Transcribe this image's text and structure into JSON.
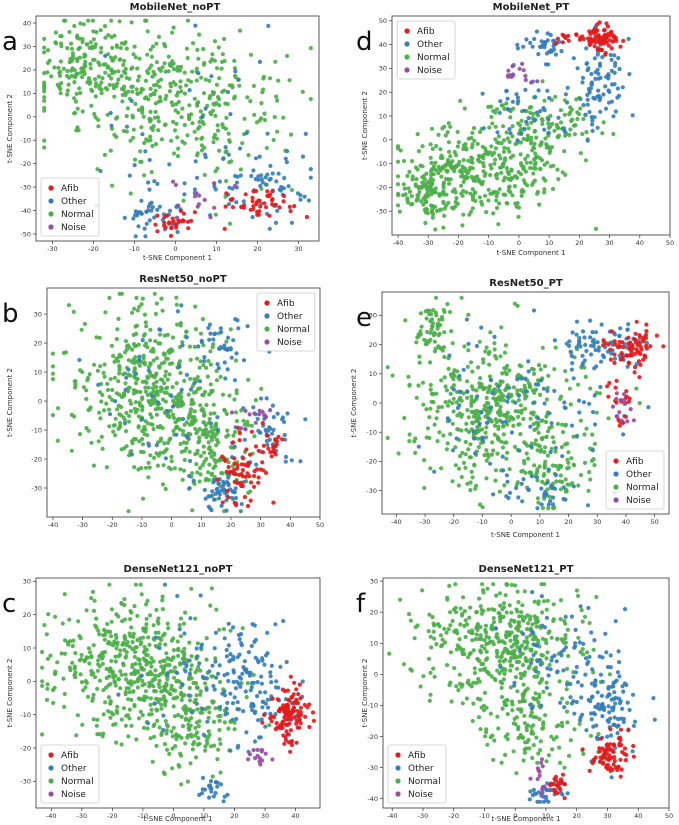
{
  "colors": {
    "Afib": "#e41a1c",
    "Other": "#377eb8",
    "Normal": "#4daf4a",
    "Noise": "#984ea3"
  },
  "legend_labels": [
    "Afib",
    "Other",
    "Normal",
    "Noise"
  ],
  "chart_data": [
    {
      "type": "scatter",
      "panel_label": "a",
      "title": "MobileNet_noPT",
      "xlabel": "t-SNE Component 1",
      "ylabel": "t-SNE Component 2",
      "xlim": [
        -34,
        35
      ],
      "ylim": [
        -53,
        43
      ],
      "xticks": [
        -30,
        -20,
        -10,
        0,
        10,
        20,
        30
      ],
      "yticks": [
        -50,
        -40,
        -30,
        -20,
        -10,
        0,
        10,
        20,
        30,
        40
      ],
      "legend_position": "bottom-left",
      "series": [
        {
          "name": "Normal",
          "count": 540,
          "clusters": [
            {
              "cx": -8,
              "cy": 12,
              "sx": 13,
              "sy": 14,
              "w": 6
            },
            {
              "cx": 10,
              "cy": 0,
              "sx": 9,
              "sy": 14,
              "w": 3
            },
            {
              "cx": -22,
              "cy": 22,
              "sx": 6,
              "sy": 9,
              "w": 2
            }
          ]
        },
        {
          "name": "Other",
          "count": 150,
          "clusters": [
            {
              "cx": 20,
              "cy": -30,
              "sx": 7,
              "sy": 7,
              "w": 3
            },
            {
              "cx": -6,
              "cy": -42,
              "sx": 4,
              "sy": 4,
              "w": 2
            },
            {
              "cx": 5,
              "cy": 0,
              "sx": 15,
              "sy": 18,
              "w": 2
            }
          ]
        },
        {
          "name": "Afib",
          "count": 75,
          "clusters": [
            {
              "cx": 20,
              "cy": -37,
              "sx": 4.5,
              "sy": 3,
              "w": 3
            },
            {
              "cx": 0,
              "cy": -45,
              "sx": 3,
              "sy": 2.5,
              "w": 2
            }
          ]
        },
        {
          "name": "Noise",
          "count": 14,
          "clusters": [
            {
              "cx": 6,
              "cy": -36,
              "sx": 4,
              "sy": 3,
              "w": 1
            }
          ]
        }
      ]
    },
    {
      "type": "scatter",
      "panel_label": "d",
      "title": "MobileNet_PT",
      "xlabel": "t-SNE Component 1",
      "ylabel": "t-SNE Component 2",
      "xlim": [
        -42,
        50
      ],
      "ylim": [
        -40,
        52
      ],
      "xticks": [
        -40,
        -30,
        -20,
        -10,
        0,
        10,
        20,
        30,
        40,
        50
      ],
      "yticks": [
        -30,
        -20,
        -10,
        0,
        10,
        20,
        30,
        40,
        50
      ],
      "legend_position": "top-left",
      "series": [
        {
          "name": "Normal",
          "count": 560,
          "clusters": [
            {
              "cx": -12,
              "cy": -12,
              "sx": 12,
              "sy": 10,
              "w": 6
            },
            {
              "cx": 10,
              "cy": 5,
              "sx": 8,
              "sy": 7,
              "w": 2
            },
            {
              "cx": -30,
              "cy": -22,
              "sx": 5,
              "sy": 6,
              "w": 2
            }
          ]
        },
        {
          "name": "Other",
          "count": 170,
          "clusters": [
            {
              "cx": 27,
              "cy": 25,
              "sx": 4,
              "sy": 9,
              "w": 3
            },
            {
              "cx": 8,
              "cy": 40,
              "sx": 4,
              "sy": 2.5,
              "w": 1
            },
            {
              "cx": 5,
              "cy": 12,
              "sx": 9,
              "sy": 8,
              "w": 2
            }
          ]
        },
        {
          "name": "Afib",
          "count": 90,
          "clusters": [
            {
              "cx": 27,
              "cy": 43,
              "sx": 3,
              "sy": 3,
              "w": 4
            },
            {
              "cx": 16,
              "cy": 42,
              "sx": 2,
              "sy": 1.5,
              "w": 1
            }
          ]
        },
        {
          "name": "Noise",
          "count": 14,
          "clusters": [
            {
              "cx": 0,
              "cy": 27,
              "sx": 2.5,
              "sy": 2.5,
              "w": 1
            }
          ]
        }
      ]
    },
    {
      "type": "scatter",
      "panel_label": "b",
      "title": "ResNet50_noPT",
      "xlabel": "",
      "ylabel": "t-SNE Component 2",
      "xlim": [
        -42,
        50
      ],
      "ylim": [
        -40,
        39
      ],
      "xticks": [
        -40,
        -30,
        -20,
        -10,
        0,
        10,
        20,
        30,
        40,
        50
      ],
      "yticks": [
        -30,
        -20,
        -10,
        0,
        10,
        20,
        30
      ],
      "legend_position": "top-right",
      "series": [
        {
          "name": "Normal",
          "count": 640,
          "clusters": [
            {
              "cx": -8,
              "cy": 3,
              "sx": 13,
              "sy": 14,
              "w": 6
            },
            {
              "cx": 12,
              "cy": -15,
              "sx": 7,
              "sy": 8,
              "w": 2
            }
          ]
        },
        {
          "name": "Other",
          "count": 190,
          "clusters": [
            {
              "cx": 18,
              "cy": -32,
              "sx": 4,
              "sy": 3,
              "w": 2
            },
            {
              "cx": 33,
              "cy": -12,
              "sx": 4,
              "sy": 6,
              "w": 2
            },
            {
              "cx": 16,
              "cy": 18,
              "sx": 5,
              "sy": 6,
              "w": 1
            },
            {
              "cx": 5,
              "cy": 0,
              "sx": 14,
              "sy": 16,
              "w": 2
            }
          ]
        },
        {
          "name": "Afib",
          "count": 85,
          "clusters": [
            {
              "cx": 24,
              "cy": -25,
              "sx": 4,
              "sy": 6,
              "w": 3
            },
            {
              "cx": 34,
              "cy": -15,
              "sx": 2.5,
              "sy": 3,
              "w": 1
            }
          ]
        },
        {
          "name": "Noise",
          "count": 14,
          "clusters": [
            {
              "cx": 28,
              "cy": -5,
              "sx": 4,
              "sy": 3,
              "w": 1
            }
          ]
        }
      ]
    },
    {
      "type": "scatter",
      "panel_label": "e",
      "title": "ResNet50_PT",
      "xlabel": "t-SNE Component 1",
      "ylabel": "t-SNE Component 2",
      "xlim": [
        -45,
        55
      ],
      "ylim": [
        -38,
        38
      ],
      "xticks": [
        -40,
        -30,
        -20,
        -10,
        0,
        10,
        20,
        30,
        40,
        50
      ],
      "yticks": [
        -30,
        -20,
        -10,
        0,
        10,
        20,
        30
      ],
      "legend_position": "bottom-right",
      "series": [
        {
          "name": "Normal",
          "count": 620,
          "clusters": [
            {
              "cx": -5,
              "cy": -2,
              "sx": 14,
              "sy": 12,
              "w": 6
            },
            {
              "cx": -28,
              "cy": 25,
              "sx": 4,
              "sy": 5,
              "w": 1
            },
            {
              "cx": 15,
              "cy": -25,
              "sx": 6,
              "sy": 5,
              "w": 1
            }
          ]
        },
        {
          "name": "Other",
          "count": 200,
          "clusters": [
            {
              "cx": 30,
              "cy": 20,
              "sx": 6,
              "sy": 4,
              "w": 2
            },
            {
              "cx": 10,
              "cy": -30,
              "sx": 7,
              "sy": 3,
              "w": 1
            },
            {
              "cx": 5,
              "cy": 0,
              "sx": 15,
              "sy": 13,
              "w": 3
            }
          ]
        },
        {
          "name": "Afib",
          "count": 95,
          "clusters": [
            {
              "cx": 44,
              "cy": 18,
              "sx": 4,
              "sy": 4,
              "w": 3
            },
            {
              "cx": 36,
              "cy": 18,
              "sx": 2,
              "sy": 3,
              "w": 1
            },
            {
              "cx": 38,
              "cy": 0,
              "sx": 2,
              "sy": 4,
              "w": 1
            }
          ]
        },
        {
          "name": "Noise",
          "count": 14,
          "clusters": [
            {
              "cx": 38,
              "cy": -2,
              "sx": 2,
              "sy": 3,
              "w": 1
            }
          ]
        }
      ]
    },
    {
      "type": "scatter",
      "panel_label": "c",
      "title": "DenseNet121_noPT",
      "xlabel": "t-SNE Component 1",
      "ylabel": "t-SNE Component 2",
      "xlim": [
        -45,
        48
      ],
      "ylim": [
        -38,
        31
      ],
      "xticks": [
        -40,
        -30,
        -20,
        -10,
        0,
        10,
        20,
        30,
        40
      ],
      "yticks": [
        -30,
        -20,
        -10,
        0,
        10,
        20,
        30
      ],
      "legend_position": "bottom-left",
      "series": [
        {
          "name": "Normal",
          "count": 640,
          "clusters": [
            {
              "cx": -12,
              "cy": 5,
              "sx": 14,
              "sy": 10,
              "w": 6
            },
            {
              "cx": 5,
              "cy": -12,
              "sx": 8,
              "sy": 8,
              "w": 2
            }
          ]
        },
        {
          "name": "Other",
          "count": 200,
          "clusters": [
            {
              "cx": 25,
              "cy": -2,
              "sx": 8,
              "sy": 9,
              "w": 3
            },
            {
              "cx": 13,
              "cy": -33,
              "sx": 2,
              "sy": 2,
              "w": 1
            },
            {
              "cx": 10,
              "cy": 5,
              "sx": 12,
              "sy": 10,
              "w": 2
            }
          ]
        },
        {
          "name": "Afib",
          "count": 110,
          "clusters": [
            {
              "cx": 38,
              "cy": -10,
              "sx": 3,
              "sy": 4,
              "w": 4
            }
          ]
        },
        {
          "name": "Noise",
          "count": 14,
          "clusters": [
            {
              "cx": 28,
              "cy": -22,
              "sx": 2,
              "sy": 1.5,
              "w": 1
            }
          ]
        }
      ]
    },
    {
      "type": "scatter",
      "panel_label": "f",
      "title": "DenseNet121_PT",
      "xlabel": "t-SNE Component 1",
      "ylabel": "t-SNE Component 2",
      "xlim": [
        -43,
        50
      ],
      "ylim": [
        -43,
        31
      ],
      "xticks": [
        -40,
        -30,
        -20,
        -10,
        0,
        10,
        20,
        30,
        40,
        50
      ],
      "yticks": [
        -40,
        -30,
        -20,
        -10,
        0,
        10,
        20,
        30
      ],
      "legend_position": "bottom-left",
      "series": [
        {
          "name": "Normal",
          "count": 560,
          "clusters": [
            {
              "cx": -5,
              "cy": 10,
              "sx": 13,
              "sy": 9,
              "w": 6
            },
            {
              "cx": 5,
              "cy": -15,
              "sx": 8,
              "sy": 8,
              "w": 2
            }
          ]
        },
        {
          "name": "Other",
          "count": 210,
          "clusters": [
            {
              "cx": 30,
              "cy": -10,
              "sx": 6,
              "sy": 7,
              "w": 3
            },
            {
              "cx": 10,
              "cy": -38,
              "sx": 3,
              "sy": 2,
              "w": 1
            },
            {
              "cx": 15,
              "cy": 5,
              "sx": 10,
              "sy": 9,
              "w": 2
            }
          ]
        },
        {
          "name": "Afib",
          "count": 95,
          "clusters": [
            {
              "cx": 31,
              "cy": -26,
              "sx": 3,
              "sy": 3,
              "w": 4
            },
            {
              "cx": 14,
              "cy": -36,
              "sx": 1.5,
              "sy": 1.5,
              "w": 1
            }
          ]
        },
        {
          "name": "Noise",
          "count": 14,
          "clusters": [
            {
              "cx": 8,
              "cy": -32,
              "sx": 1.5,
              "sy": 2.5,
              "w": 1
            }
          ]
        }
      ]
    }
  ]
}
